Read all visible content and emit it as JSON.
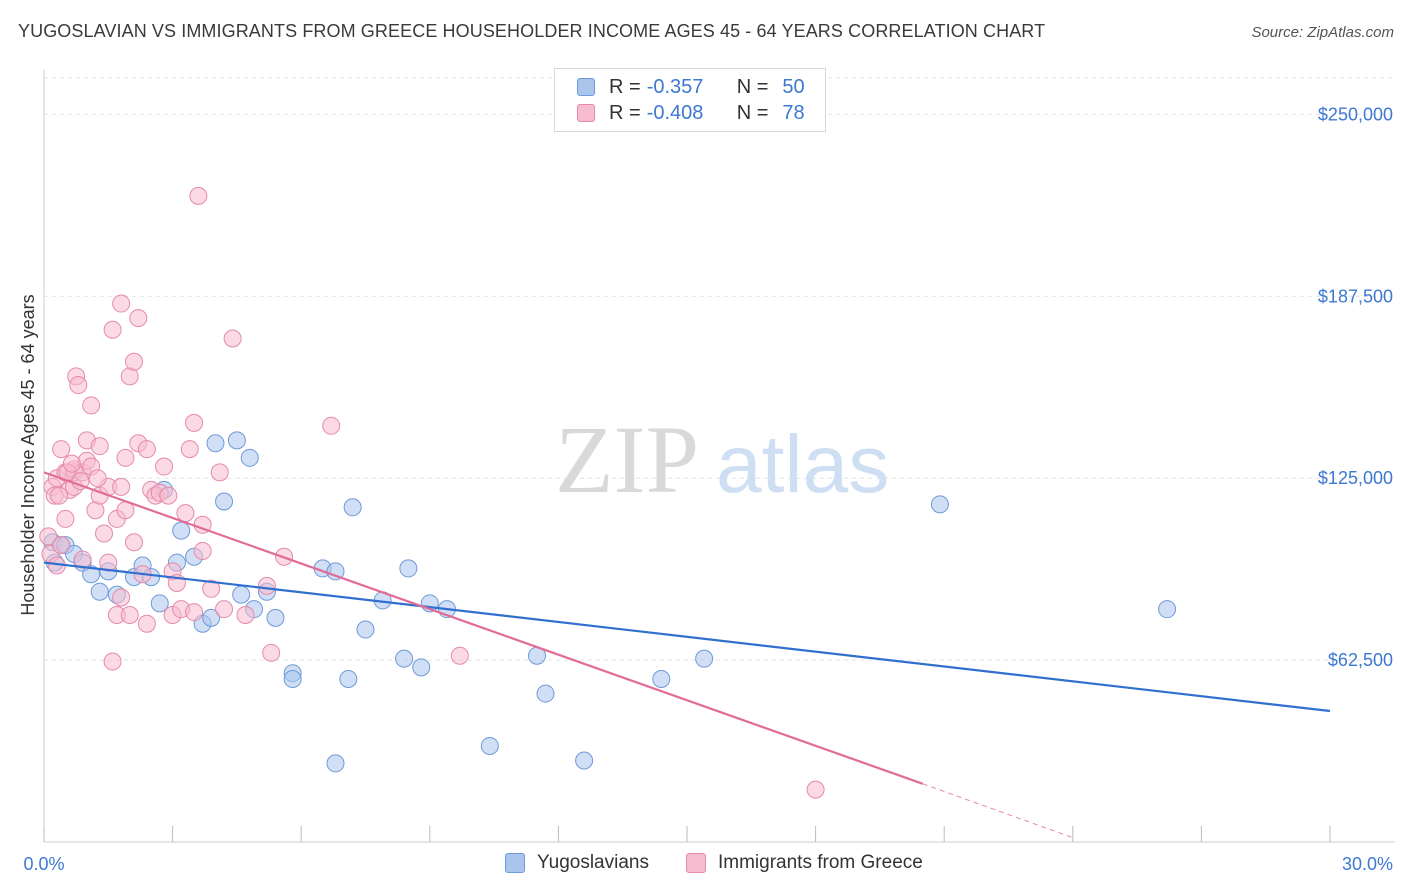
{
  "title": "YUGOSLAVIAN VS IMMIGRANTS FROM GREECE HOUSEHOLDER INCOME AGES 45 - 64 YEARS CORRELATION CHART",
  "source": "Source: ZipAtlas.com",
  "watermark": {
    "zip": "ZIP",
    "atlas": "atlas"
  },
  "legend": {
    "rows": [
      {
        "r_label": "R =",
        "r_value": "-0.357",
        "n_label": "N =",
        "n_value": "50",
        "color": "#a9c5ec",
        "stroke": "#6f9ad8"
      },
      {
        "r_label": "R =",
        "r_value": "-0.408",
        "n_label": "N =",
        "n_value": "78",
        "color": "#f7bccf",
        "stroke": "#e58aa8"
      }
    ]
  },
  "bottom_legend": [
    {
      "label": "Yugoslavians",
      "color": "#a9c5ec",
      "stroke": "#6f9ad8"
    },
    {
      "label": "Immigrants from Greece",
      "color": "#f7bccf",
      "stroke": "#e58aa8"
    }
  ],
  "chart_data": {
    "type": "scatter",
    "title": "YUGOSLAVIAN VS IMMIGRANTS FROM GREECE HOUSEHOLDER INCOME AGES 45 - 64 YEARS CORRELATION CHART",
    "xlabel": "",
    "ylabel": "Householder Income Ages 45 - 64 years",
    "xlim": [
      0,
      30
    ],
    "ylim": [
      0,
      262500
    ],
    "x_tick_labels": [
      "0.0%",
      "30.0%"
    ],
    "y_ticks": [
      62500,
      125000,
      187500,
      250000
    ],
    "y_tick_labels": [
      "$62,500",
      "$125,000",
      "$187,500",
      "$250,000"
    ],
    "series": [
      {
        "name": "Yugoslavians",
        "color": "#6f9ad8",
        "fill": "#a9c5ec",
        "line_color": "#2f6fd0",
        "trend": {
          "x0": 0,
          "y0": 96000,
          "x1": 30,
          "y1": 45000
        },
        "points": [
          [
            0.2,
            103000
          ],
          [
            0.25,
            96000
          ],
          [
            0.4,
            102000
          ],
          [
            0.5,
            102000
          ],
          [
            0.7,
            99000
          ],
          [
            0.9,
            96000
          ],
          [
            1.1,
            92000
          ],
          [
            1.3,
            86000
          ],
          [
            1.5,
            93000
          ],
          [
            1.7,
            85000
          ],
          [
            2.1,
            91000
          ],
          [
            2.3,
            95000
          ],
          [
            2.5,
            91000
          ],
          [
            2.7,
            82000
          ],
          [
            2.8,
            121000
          ],
          [
            3.1,
            96000
          ],
          [
            3.2,
            107000
          ],
          [
            3.5,
            98000
          ],
          [
            3.7,
            75000
          ],
          [
            3.9,
            77000
          ],
          [
            4.0,
            137000
          ],
          [
            4.2,
            117000
          ],
          [
            4.5,
            138000
          ],
          [
            4.6,
            85000
          ],
          [
            4.8,
            132000
          ],
          [
            4.9,
            80000
          ],
          [
            5.2,
            86000
          ],
          [
            5.4,
            77000
          ],
          [
            5.8,
            58000
          ],
          [
            5.8,
            56000
          ],
          [
            6.5,
            94000
          ],
          [
            6.8,
            93000
          ],
          [
            6.8,
            27000
          ],
          [
            7.1,
            56000
          ],
          [
            7.2,
            115000
          ],
          [
            7.5,
            73000
          ],
          [
            7.9,
            83000
          ],
          [
            8.4,
            63000
          ],
          [
            8.5,
            94000
          ],
          [
            8.8,
            60000
          ],
          [
            9.0,
            82000
          ],
          [
            9.4,
            80000
          ],
          [
            10.4,
            33000
          ],
          [
            11.5,
            64000
          ],
          [
            11.7,
            51000
          ],
          [
            12.6,
            28000
          ],
          [
            14.4,
            56000
          ],
          [
            15.4,
            63000
          ],
          [
            20.9,
            116000
          ],
          [
            26.2,
            80000
          ]
        ]
      },
      {
        "name": "Immigrants from Greece",
        "color": "#e58aa8",
        "fill": "#f7bccf",
        "line_color": "#e06c97",
        "trend": {
          "x0": 0,
          "y0": 127000,
          "x1": 20.5,
          "y1": 20000
        },
        "trend_dashed": {
          "x0": 20.5,
          "y0": 20000,
          "x1": 24,
          "y1": 1500
        },
        "points": [
          [
            0.1,
            105000
          ],
          [
            0.15,
            99000
          ],
          [
            0.2,
            122000
          ],
          [
            0.25,
            119000
          ],
          [
            0.3,
            125000
          ],
          [
            0.3,
            95000
          ],
          [
            0.4,
            102000
          ],
          [
            0.4,
            135000
          ],
          [
            0.5,
            127000
          ],
          [
            0.5,
            111000
          ],
          [
            0.6,
            121000
          ],
          [
            0.7,
            122000
          ],
          [
            0.7,
            127000
          ],
          [
            0.7,
            128000
          ],
          [
            0.75,
            160000
          ],
          [
            0.8,
            157000
          ],
          [
            0.9,
            97000
          ],
          [
            0.9,
            127000
          ],
          [
            1.0,
            131000
          ],
          [
            1.0,
            138000
          ],
          [
            1.1,
            150000
          ],
          [
            1.1,
            129000
          ],
          [
            1.2,
            114000
          ],
          [
            1.3,
            119000
          ],
          [
            1.3,
            136000
          ],
          [
            1.4,
            106000
          ],
          [
            1.5,
            96000
          ],
          [
            1.5,
            122000
          ],
          [
            1.6,
            176000
          ],
          [
            1.6,
            62000
          ],
          [
            1.7,
            78000
          ],
          [
            1.7,
            111000
          ],
          [
            1.8,
            122000
          ],
          [
            1.8,
            185000
          ],
          [
            1.8,
            84000
          ],
          [
            1.9,
            132000
          ],
          [
            1.9,
            114000
          ],
          [
            2.0,
            160000
          ],
          [
            2.0,
            78000
          ],
          [
            2.1,
            103000
          ],
          [
            2.1,
            165000
          ],
          [
            2.2,
            180000
          ],
          [
            2.2,
            137000
          ],
          [
            2.3,
            92000
          ],
          [
            2.4,
            135000
          ],
          [
            2.4,
            75000
          ],
          [
            2.5,
            121000
          ],
          [
            2.6,
            119000
          ],
          [
            2.7,
            120000
          ],
          [
            2.8,
            129000
          ],
          [
            2.9,
            119000
          ],
          [
            3.0,
            93000
          ],
          [
            3.0,
            78000
          ],
          [
            3.1,
            89000
          ],
          [
            3.2,
            80000
          ],
          [
            3.3,
            113000
          ],
          [
            3.4,
            135000
          ],
          [
            3.5,
            144000
          ],
          [
            3.5,
            79000
          ],
          [
            3.6,
            222000
          ],
          [
            3.7,
            109000
          ],
          [
            3.7,
            100000
          ],
          [
            3.9,
            87000
          ],
          [
            4.1,
            127000
          ],
          [
            4.2,
            80000
          ],
          [
            4.4,
            173000
          ],
          [
            4.7,
            78000
          ],
          [
            5.2,
            88000
          ],
          [
            5.3,
            65000
          ],
          [
            5.6,
            98000
          ],
          [
            6.7,
            143000
          ],
          [
            9.7,
            64000
          ],
          [
            18.0,
            18000
          ],
          [
            0.55,
            127000
          ],
          [
            0.85,
            124000
          ],
          [
            1.25,
            125000
          ],
          [
            0.35,
            119000
          ],
          [
            0.65,
            130000
          ]
        ]
      }
    ]
  }
}
